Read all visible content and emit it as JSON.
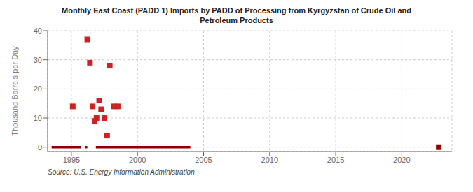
{
  "chart_data": {
    "type": "scatter",
    "title": "Monthly East Coast (PADD 1) Imports by PADD of Processing from Kyrgyzstan of Crude Oil and\nPetroleum Products",
    "y_label": "Thousand Barrels per Day",
    "source": "Source: U.S. Energy Information Administration",
    "xlim": [
      1993.2,
      2023.8
    ],
    "xticks": [
      1995,
      2000,
      2005,
      2010,
      2015,
      2020
    ],
    "ylim": [
      -1.5,
      40
    ],
    "yticks": [
      0,
      10,
      20,
      30,
      40
    ],
    "grid": true,
    "series": [
      {
        "type": "line",
        "color": "#8b0000",
        "marker": "none",
        "line_style": "solid",
        "x": [
          1993.5,
          1995.7,
          null,
          1996.05,
          1996.2,
          null,
          1996.85,
          2004.0
        ],
        "values": [
          0,
          0,
          null,
          0,
          0,
          null,
          0,
          0
        ]
      },
      {
        "type": "scatter",
        "color": "#8b0000",
        "marker": "square",
        "x": [
          2022.8
        ],
        "values": [
          0
        ]
      },
      {
        "type": "scatter",
        "color": "#cc2222",
        "marker": "square",
        "x": [
          1995.1,
          1996.2,
          1996.4,
          1996.6,
          1996.75,
          1996.9,
          1997.1,
          1997.25,
          1997.5,
          1997.7,
          1997.9,
          1998.2,
          1998.5
        ],
        "values": [
          14,
          37,
          29,
          14,
          9,
          10,
          16,
          13,
          10,
          4,
          28,
          14,
          14
        ]
      }
    ]
  }
}
